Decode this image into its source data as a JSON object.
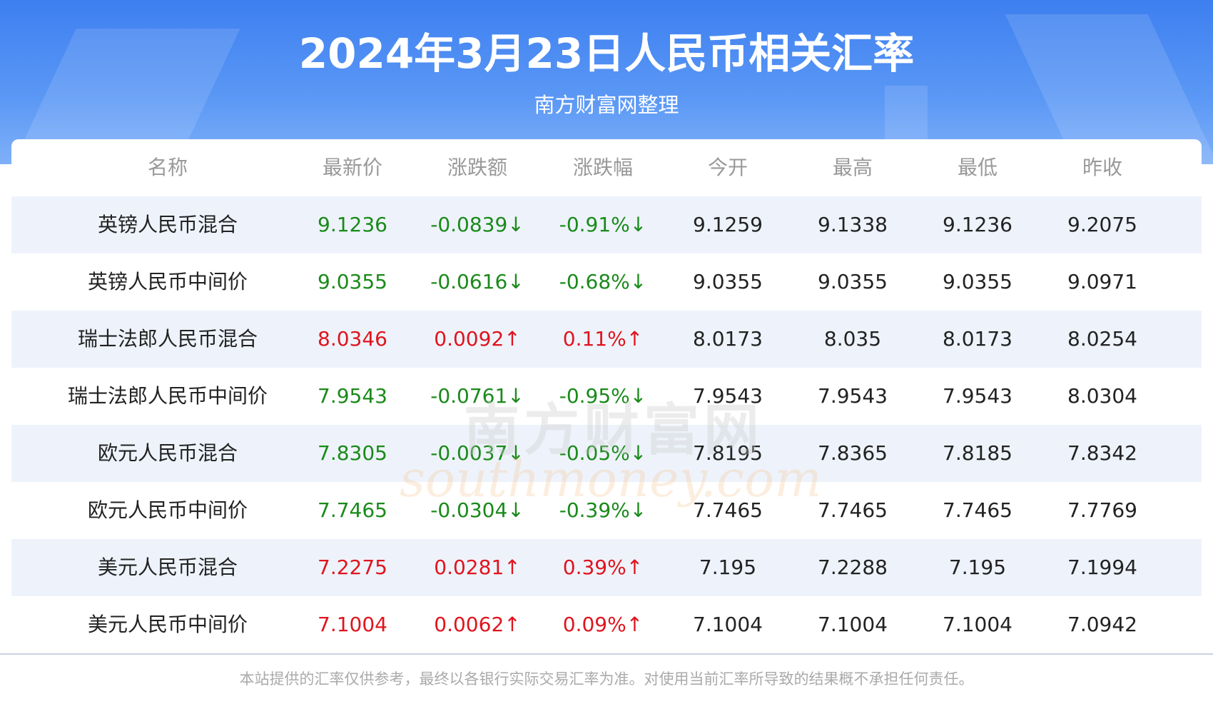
{
  "header": {
    "title": "2024年3月23日人民币相关汇率",
    "subtitle": "南方财富网整理"
  },
  "table": {
    "columns": [
      "名称",
      "最新价",
      "涨跌额",
      "涨跌幅",
      "今开",
      "最高",
      "最低",
      "昨收"
    ],
    "rows": [
      [
        "英镑人民币混合",
        "9.1236",
        "-0.0839↓",
        "-0.91%↓",
        "9.1259",
        "9.1338",
        "9.1236",
        "9.2075"
      ],
      [
        "英镑人民币中间价",
        "9.0355",
        "-0.0616↓",
        "-0.68%↓",
        "9.0355",
        "9.0355",
        "9.0355",
        "9.0971"
      ],
      [
        "瑞士法郎人民币混合",
        "8.0346",
        "0.0092↑",
        "0.11%↑",
        "8.0173",
        "8.035",
        "8.0173",
        "8.0254"
      ],
      [
        "瑞士法郎人民币中间价",
        "7.9543",
        "-0.0761↓",
        "-0.95%↓",
        "7.9543",
        "7.9543",
        "7.9543",
        "8.0304"
      ],
      [
        "欧元人民币混合",
        "7.8305",
        "-0.0037↓",
        "-0.05%↓",
        "7.8195",
        "7.8365",
        "7.8185",
        "7.8342"
      ],
      [
        "欧元人民币中间价",
        "7.7465",
        "-0.0304↓",
        "-0.39%↓",
        "7.7465",
        "7.7465",
        "7.7465",
        "7.7769"
      ],
      [
        "美元人民币混合",
        "7.2275",
        "0.0281↑",
        "0.39%↑",
        "7.195",
        "7.2288",
        "7.195",
        "7.1994"
      ],
      [
        "美元人民币中间价",
        "7.1004",
        "0.0062↑",
        "0.09%↑",
        "7.1004",
        "7.1004",
        "7.1004",
        "7.0942"
      ]
    ]
  },
  "watermark": {
    "cn": "南方财富网",
    "en": "southmoney.com"
  },
  "footer": "本站提供的汇率仅供参考，最终以各银行实际交易汇率为准。对使用当前汇率所导致的结果概不承担任何责任。"
}
